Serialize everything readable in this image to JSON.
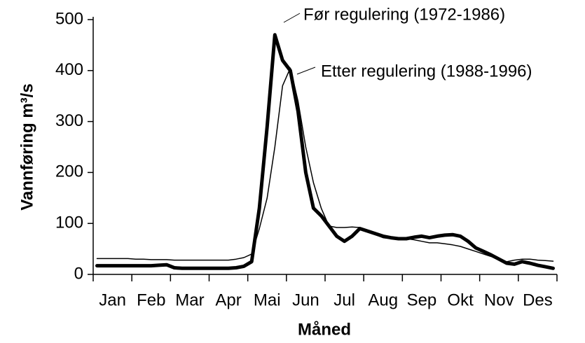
{
  "chart_data": {
    "type": "line",
    "y_label": "Vannføring m³/s",
    "x_label": "Måned",
    "categories": [
      null,
      null,
      "Jan",
      null,
      null,
      null,
      null,
      "Feb",
      null,
      null,
      null,
      null,
      "Mar",
      null,
      null,
      null,
      null,
      "Apr",
      null,
      null,
      null,
      null,
      "Mai",
      null,
      null,
      null,
      null,
      "Jun",
      null,
      null,
      null,
      null,
      "Jul",
      null,
      null,
      null,
      null,
      "Aug",
      null,
      null,
      null,
      null,
      "Sep",
      null,
      null,
      null,
      null,
      "Okt",
      null,
      null,
      null,
      null,
      "Nov",
      null,
      null,
      null,
      null,
      "Des",
      null,
      null
    ],
    "series": [
      {
        "name": "Før regulering (1972-1986)",
        "color": "#000000",
        "width": 5,
        "values": [
          17,
          17,
          17,
          17,
          17,
          17,
          17,
          17,
          18,
          19,
          13,
          12,
          12,
          12,
          12,
          12,
          12,
          12,
          13,
          16,
          25,
          130,
          290,
          470,
          420,
          400,
          320,
          200,
          130,
          115,
          95,
          75,
          65,
          75,
          90,
          85,
          80,
          75,
          72,
          70,
          70,
          73,
          75,
          72,
          75,
          77,
          78,
          75,
          65,
          52,
          45,
          38,
          30,
          22,
          20,
          25,
          22,
          18,
          15,
          12
        ]
      },
      {
        "name": "Etter regulering (1988-1996)",
        "color": "#000000",
        "width": 1.5,
        "values": [
          31,
          31,
          31,
          31,
          31,
          30,
          30,
          29,
          29,
          29,
          28,
          28,
          28,
          28,
          28,
          28,
          28,
          28,
          30,
          33,
          40,
          90,
          150,
          250,
          370,
          405,
          340,
          250,
          180,
          130,
          95,
          92,
          92,
          93,
          92,
          85,
          78,
          72,
          70,
          72,
          70,
          68,
          65,
          62,
          62,
          60,
          58,
          55,
          50,
          45,
          40,
          35,
          28,
          25,
          28,
          30,
          30,
          28,
          27,
          26
        ]
      }
    ],
    "ylim": [
      0,
      500
    ],
    "yticks": [
      0,
      100,
      200,
      300,
      400,
      500
    ]
  }
}
